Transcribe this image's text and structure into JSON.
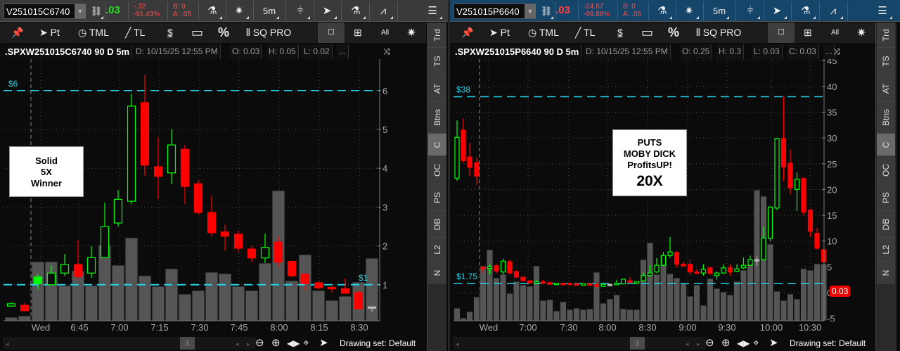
{
  "panels": [
    {
      "topbar": {
        "symbol": "V251015C6740",
        "last": ".03",
        "last_color": "#22dd22",
        "change": "-.32",
        "change_pct": "-91.43%",
        "bid": "B: 0",
        "ask": "A: .05",
        "interval": "5m",
        "bar_color": "#3a3a3a"
      },
      "toolbar": {
        "pt": "Pt",
        "tml": "TML",
        "tl": "TL",
        "pct": "%",
        "sq": "SQ PRO",
        "all": "All"
      },
      "side_tabs": [
        "Trd",
        "TS",
        "AT",
        "Btns",
        "C",
        "OC",
        "PS",
        "DB",
        "L2",
        "N"
      ],
      "active_tab": "C",
      "info": {
        "title": ".SPXW251015C6740 90 D 5m",
        "date": "D: 10/15/25 12:55 PM",
        "open": "O: 0.03",
        "high": "H: 0.05",
        "low": "L: 0.02",
        "close": "",
        "more": "..."
      },
      "note": [
        "Solid",
        "5X",
        "Winner"
      ],
      "bottom": {
        "drawing_set": "Drawing set: Default"
      }
    },
    {
      "topbar": {
        "symbol": "V251015P6640",
        "last": ".03",
        "last_color": "#ff4040",
        "change": "-24.87",
        "change_pct": "-99.88%",
        "bid": "B: 0",
        "ask": "A: .05",
        "interval": "5m",
        "bar_color": "#16456a"
      },
      "toolbar": {
        "pt": "Pt",
        "tml": "TML",
        "tl": "TL",
        "pct": "%",
        "sq": "SQ PRO",
        "all": "All"
      },
      "side_tabs": [
        "Trd",
        "TS",
        "AT",
        "Btns",
        "C",
        "OC",
        "PS",
        "DB",
        "L2",
        "N"
      ],
      "active_tab": "C",
      "info": {
        "title": ".SPXW251015P6640 90 D 5m",
        "date": "D: 10/15/25 12:55 PM",
        "open": "O: 0.25",
        "high": "H: 0.3",
        "low": "L: 0.03",
        "close": "C: 0.03",
        "more": "..."
      },
      "note": [
        "PUTS",
        "MOBY DICK",
        "ProfitsUP!",
        "20X"
      ],
      "price_marker": "0.03",
      "bottom": {
        "drawing_set": "Drawing set: Default"
      }
    }
  ],
  "chart_data": [
    {
      "type": "candlestick",
      "symbol": ".SPXW251015C6740",
      "x_tick_labels": [
        "Wed",
        "6:45",
        "7:00",
        "7:15",
        "7:30",
        "7:45",
        "8:00",
        "8:15",
        "8:30"
      ],
      "y_ticks": [
        1,
        2,
        3,
        4,
        5,
        6
      ],
      "grid": true,
      "colors": {
        "up": "#00ff00",
        "down": "#ff0000",
        "flat": "#bbbbbb",
        "volume": "#555555",
        "level": "#22d3e6"
      },
      "levels": [
        {
          "price": 6,
          "label": "$6",
          "label_side": "left"
        },
        {
          "price": 1,
          "label": "$1",
          "label_side": "right"
        }
      ],
      "filled_up": [
        2
      ],
      "ohlc": [
        [
          0.45,
          0.55,
          0.44,
          0.51
        ],
        [
          0.47,
          0.54,
          0.33,
          0.33
        ],
        [
          1.03,
          1.27,
          0.89,
          1.2
        ],
        [
          1.0,
          1.5,
          1.0,
          1.3
        ],
        [
          1.3,
          1.79,
          1.23,
          1.52
        ],
        [
          1.52,
          2.16,
          1.14,
          1.21
        ],
        [
          1.3,
          1.99,
          1.18,
          1.7
        ],
        [
          1.7,
          3.12,
          1.7,
          2.5
        ],
        [
          2.59,
          3.44,
          2.5,
          3.2
        ],
        [
          3.15,
          5.92,
          3.08,
          5.6
        ],
        [
          5.69,
          6.4,
          3.8,
          4.08
        ],
        [
          4.04,
          4.8,
          3.2,
          3.79
        ],
        [
          3.88,
          5.0,
          3.59,
          4.6
        ],
        [
          4.49,
          4.6,
          3.08,
          3.53
        ],
        [
          3.6,
          3.7,
          2.8,
          2.86
        ],
        [
          2.86,
          3.3,
          2.25,
          2.34
        ],
        [
          2.36,
          2.55,
          1.88,
          2.25
        ],
        [
          2.3,
          2.4,
          1.83,
          1.94
        ],
        [
          1.92,
          2.0,
          1.58,
          1.69
        ],
        [
          1.69,
          2.32,
          1.56,
          1.96
        ],
        [
          2.1,
          2.25,
          1.45,
          1.58
        ],
        [
          1.6,
          1.62,
          1.2,
          1.23
        ],
        [
          1.27,
          1.3,
          0.85,
          1.03
        ],
        [
          1.05,
          1.1,
          0.88,
          0.92
        ],
        [
          0.93,
          1.0,
          0.8,
          0.9
        ],
        [
          0.9,
          1.16,
          0.78,
          0.78
        ],
        [
          0.8,
          0.85,
          0.38,
          0.38
        ],
        [
          0.43,
          0.43,
          0.3,
          0.43
        ]
      ],
      "volume_relative": [
        5,
        7,
        84,
        84,
        50,
        71,
        50,
        108,
        79,
        118,
        64,
        49,
        74,
        38,
        43,
        69,
        67,
        49,
        43,
        82,
        185,
        57,
        94,
        43,
        29,
        35,
        55,
        89
      ]
    },
    {
      "type": "candlestick",
      "symbol": ".SPXW251015P6640",
      "x_tick_labels": [
        "Wed",
        "7:00",
        "7:30",
        "8:00",
        "8:30",
        "9:00",
        "9:30",
        "10:00",
        "10:30"
      ],
      "y_ticks": [
        -5,
        0,
        5,
        10,
        15,
        20,
        25,
        30,
        35,
        40,
        45
      ],
      "grid": true,
      "colors": {
        "up": "#00ff00",
        "down": "#ff0000",
        "flat": "#bbbbbb",
        "volume": "#555555",
        "level": "#22d3e6"
      },
      "levels": [
        {
          "price": 38,
          "label": "$38",
          "label_side": "left"
        },
        {
          "price": 1.75,
          "label": "$1.75",
          "label_side": "left"
        }
      ],
      "filled_up": [],
      "ohlc": [
        [
          22.2,
          33.4,
          21.7,
          30.1
        ],
        [
          31.5,
          33.8,
          25.1,
          25.6
        ],
        [
          26.3,
          29,
          22.5,
          24.3
        ],
        [
          25.2,
          26.2,
          20.9,
          22.6
        ],
        [
          4.9,
          5.2,
          3.8,
          4.7
        ],
        [
          4.7,
          5.5,
          3.5,
          5.0
        ],
        [
          5.2,
          5.5,
          3.7,
          4.2
        ],
        [
          4.0,
          6.6,
          3.5,
          6.1
        ],
        [
          6.0,
          6.5,
          3.6,
          3.8
        ],
        [
          4.1,
          4.3,
          3.0,
          3.0
        ],
        [
          3.0,
          3.1,
          2.3,
          2.3
        ],
        [
          2.3,
          2.4,
          1.9,
          1.9
        ],
        [
          1.9,
          2.4,
          1.8,
          2.1
        ],
        [
          2.1,
          2.5,
          1.8,
          1.8
        ],
        [
          1.9,
          2.2,
          1.7,
          1.7
        ],
        [
          1.7,
          1.9,
          1.6,
          1.8
        ],
        [
          1.8,
          1.9,
          1.7,
          1.7
        ],
        [
          1.8,
          1.9,
          1.6,
          1.6
        ],
        [
          1.7,
          1.8,
          1.6,
          1.6
        ],
        [
          1.6,
          1.8,
          1.4,
          1.7
        ],
        [
          1.7,
          1.8,
          1.6,
          1.6
        ],
        [
          1.6,
          1.7,
          1.1,
          1.2
        ],
        [
          1.2,
          1.7,
          1.1,
          1.6
        ],
        [
          1.6,
          1.8,
          1.4,
          1.6
        ],
        [
          1.6,
          2.5,
          1.5,
          1.8
        ],
        [
          1.7,
          2.6,
          1.6,
          2.6
        ],
        [
          2.3,
          3.0,
          1.9,
          2.0
        ],
        [
          1.8,
          2.1,
          1.6,
          2.1
        ],
        [
          2.3,
          3.9,
          2.2,
          3.3
        ],
        [
          3.3,
          5.3,
          3.2,
          3.8
        ],
        [
          4.0,
          6.7,
          3.8,
          5.3
        ],
        [
          5.3,
          7.9,
          5.2,
          7.2
        ],
        [
          7.2,
          10.8,
          6.7,
          7.9
        ],
        [
          7.8,
          8.0,
          4.9,
          5.5
        ],
        [
          5.5,
          6.0,
          5.0,
          5.2
        ],
        [
          5.5,
          6.4,
          3.3,
          4.0
        ],
        [
          4.0,
          4.6,
          3.9,
          3.9
        ],
        [
          3.8,
          5.5,
          3.3,
          4.5
        ],
        [
          4.8,
          5.0,
          3.5,
          3.7
        ],
        [
          3.3,
          4.1,
          2.5,
          3.8
        ],
        [
          3.8,
          5.5,
          3.6,
          4.8
        ],
        [
          4.8,
          5.5,
          3.3,
          4.0
        ],
        [
          4.1,
          5.5,
          4.0,
          4.6
        ],
        [
          4.8,
          6.8,
          4.6,
          5.3
        ],
        [
          5.3,
          7.2,
          5.2,
          6.4
        ],
        [
          6.4,
          7.0,
          5.2,
          6.4
        ],
        [
          6.4,
          12.8,
          6.2,
          10.6
        ],
        [
          10.5,
          16.8,
          10.0,
          16.6
        ],
        [
          16.4,
          30,
          16.0,
          29.9
        ],
        [
          29.9,
          38.1,
          21.7,
          24.4
        ],
        [
          25.1,
          27.8,
          19,
          20.3
        ],
        [
          20.0,
          23.3,
          15.8,
          22
        ],
        [
          22.1,
          22.4,
          14.9,
          15.6
        ],
        [
          16.0,
          16.2,
          10.8,
          11.9
        ],
        [
          11.5,
          12.6,
          8.4,
          8.6
        ],
        [
          8.3,
          8.6,
          5.8,
          6.0
        ]
      ],
      "volume_relative": [
        18,
        4,
        13,
        34,
        78,
        101,
        61,
        66,
        39,
        56,
        51,
        49,
        78,
        29,
        30,
        14,
        27,
        16,
        18,
        16,
        17,
        69,
        25,
        31,
        37,
        17,
        16,
        16,
        87,
        111,
        66,
        92,
        67,
        61,
        53,
        35,
        51,
        22,
        60,
        46,
        41,
        37,
        56,
        72,
        80,
        186,
        177,
        109,
        42,
        29,
        38,
        31,
        74,
        72,
        81,
        81
      ],
      "last_price_label": "0.03"
    }
  ]
}
